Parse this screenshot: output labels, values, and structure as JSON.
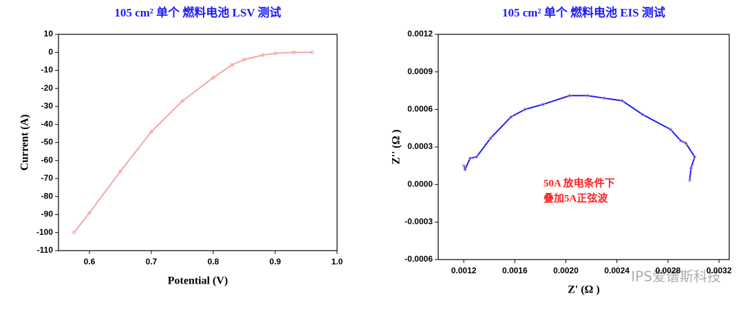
{
  "chart_data": [
    {
      "type": "line",
      "title": "105 cm² 单个 燃料电池 LSV 测试",
      "xlabel": "Potential (V)",
      "ylabel": "Current (A)",
      "x": [
        0.575,
        0.6,
        0.65,
        0.7,
        0.75,
        0.8,
        0.83,
        0.85,
        0.88,
        0.9,
        0.93,
        0.96
      ],
      "series": [
        {
          "color": "#f4a6a6",
          "marker_color": "#f4a6a6",
          "values": [
            -100,
            -89,
            -66,
            -44,
            -27,
            -14,
            -7,
            -4,
            -1.5,
            -0.5,
            0,
            0
          ]
        }
      ],
      "xlim": [
        0.55,
        1.0
      ],
      "xticks": [
        0.6,
        0.7,
        0.8,
        0.9,
        {
          "value": 1,
          "label": "1.0"
        }
      ],
      "ylim": [
        -110,
        10
      ],
      "yticks": [
        10,
        0,
        -10,
        -20,
        -30,
        -40,
        -50,
        -60,
        -70,
        -80,
        -90,
        -100,
        -110
      ]
    },
    {
      "type": "line",
      "title": "105 cm² 单个 燃料电池 EIS 测试",
      "xlabel": "Z' (Ω )",
      "ylabel": "Z'' (Ω )",
      "x": [
        0.0012,
        0.00121,
        0.00125,
        0.0013,
        0.00141,
        0.00157,
        0.00168,
        0.00182,
        0.00203,
        0.00217,
        0.0023,
        0.00244,
        0.0026,
        0.00282,
        0.0029,
        0.00294,
        0.00301,
        0.00298,
        0.00297
      ],
      "series": [
        {
          "color": "#1a1aff",
          "marker_color": "#f4a6a6",
          "values": [
            0.000154,
            0.00012,
            0.00021,
            0.00022,
            0.00037,
            0.00054,
            0.0006,
            0.00064,
            0.00071,
            0.00071,
            0.00069,
            0.00067,
            0.00056,
            0.00044,
            0.00035,
            0.00033,
            0.00022,
            0.00013,
            3e-05
          ]
        }
      ],
      "xlim": [
        0.001,
        0.00328
      ],
      "xticks": [
        {
          "value": 0.0012,
          "label": "0.0012"
        },
        {
          "value": 0.0016,
          "label": "0.0016"
        },
        {
          "value": 0.002,
          "label": "0.0020"
        },
        {
          "value": 0.0024,
          "label": "0.0024"
        },
        {
          "value": 0.0028,
          "label": "0.0028"
        },
        {
          "value": 0.0032,
          "label": "0.0032"
        }
      ],
      "ylim": [
        -0.0006,
        0.0012
      ],
      "yticks": [
        {
          "value": 0.0012,
          "label": "0.0012"
        },
        {
          "value": 0.0009,
          "label": "0.0009"
        },
        {
          "value": 0.0006,
          "label": "0.0006"
        },
        {
          "value": 0.0003,
          "label": "0.0003"
        },
        {
          "value": 0,
          "label": "0.0000"
        },
        {
          "value": -0.0003,
          "label": "-0.0003"
        },
        {
          "value": -0.0006,
          "label": "-0.0006"
        }
      ],
      "annotations": [
        "50A 放电条件下",
        "叠加5A正弦波"
      ]
    }
  ],
  "watermark": "IPS爱谱斯科技"
}
